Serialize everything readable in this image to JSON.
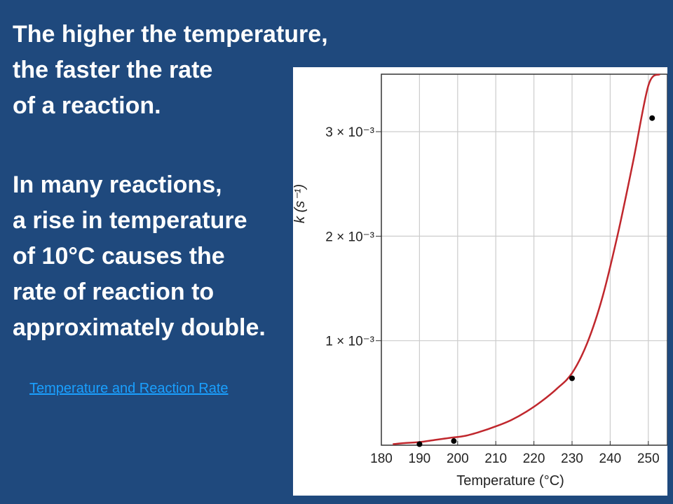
{
  "slide": {
    "heading_lines": [
      "The higher the temperature,",
      "the faster the rate",
      "of a reaction."
    ],
    "body_lines": [
      "In many reactions,",
      "a rise in temperature",
      "of 10°C causes the",
      "rate of reaction to",
      "approximately double."
    ],
    "link_text": "Temperature and Reaction Rate",
    "colors": {
      "background": "#1f497d",
      "text": "#ffffff",
      "link": "#1aa0ff",
      "curve": "#c0272d",
      "points": "#000000"
    }
  },
  "chart_data": {
    "type": "line",
    "xlabel": "Temperature (°C)",
    "ylabel": "k (s⁻¹)",
    "xlim": [
      180,
      255
    ],
    "ylim": [
      0,
      0.00355
    ],
    "x_ticks": [
      180,
      190,
      200,
      210,
      220,
      230,
      240,
      250
    ],
    "y_ticks": [
      {
        "value": 0.001,
        "label": "1 × 10⁻³"
      },
      {
        "value": 0.002,
        "label": "2 × 10⁻³"
      },
      {
        "value": 0.003,
        "label": "3 × 10⁻³"
      }
    ],
    "grid": true,
    "series": [
      {
        "kind": "curve",
        "x": [
          183,
          186,
          190,
          194,
          198,
          202,
          206,
          210,
          214,
          218,
          222,
          226,
          230,
          234,
          238,
          242,
          246,
          250,
          253
        ],
        "y": [
          1e-05,
          2e-05,
          3e-05,
          5e-05,
          7e-05,
          9e-05,
          0.00013,
          0.00018,
          0.00024,
          0.00032,
          0.00042,
          0.00054,
          0.00069,
          0.00098,
          0.00142,
          0.00202,
          0.00271,
          0.00344,
          0.00355
        ]
      },
      {
        "kind": "points",
        "x": [
          190,
          199,
          230,
          251
        ],
        "y": [
          1e-05,
          4e-05,
          0.00064,
          0.00313
        ]
      }
    ]
  }
}
